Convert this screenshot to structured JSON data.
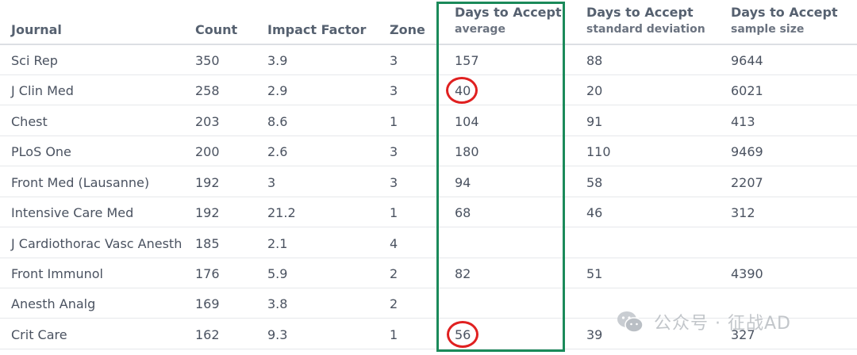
{
  "table": {
    "headers": {
      "journal": "Journal",
      "count": "Count",
      "impact_factor": "Impact Factor",
      "zone": "Zone",
      "avg": {
        "title": "Days to Accept",
        "sub": "average"
      },
      "sd": {
        "title": "Days to Accept",
        "sub": "standard deviation"
      },
      "n": {
        "title": "Days to Accept",
        "sub": "sample size"
      }
    },
    "rows": [
      {
        "journal": "Sci Rep",
        "count": "350",
        "impact_factor": "3.9",
        "zone": "3",
        "avg": "157",
        "sd": "88",
        "n": "9644"
      },
      {
        "journal": "J Clin Med",
        "count": "258",
        "impact_factor": "2.9",
        "zone": "3",
        "avg": "40",
        "sd": "20",
        "n": "6021"
      },
      {
        "journal": "Chest",
        "count": "203",
        "impact_factor": "8.6",
        "zone": "1",
        "avg": "104",
        "sd": "91",
        "n": "413"
      },
      {
        "journal": "PLoS One",
        "count": "200",
        "impact_factor": "2.6",
        "zone": "3",
        "avg": "180",
        "sd": "110",
        "n": "9469"
      },
      {
        "journal": "Front Med (Lausanne)",
        "count": "192",
        "impact_factor": "3",
        "zone": "3",
        "avg": "94",
        "sd": "58",
        "n": "2207"
      },
      {
        "journal": "Intensive Care Med",
        "count": "192",
        "impact_factor": "21.2",
        "zone": "1",
        "avg": "68",
        "sd": "46",
        "n": "312"
      },
      {
        "journal": "J Cardiothorac Vasc Anesth",
        "count": "185",
        "impact_factor": "2.1",
        "zone": "4",
        "avg": "",
        "sd": "",
        "n": ""
      },
      {
        "journal": "Front Immunol",
        "count": "176",
        "impact_factor": "5.9",
        "zone": "2",
        "avg": "82",
        "sd": "51",
        "n": "4390"
      },
      {
        "journal": "Anesth Analg",
        "count": "169",
        "impact_factor": "3.8",
        "zone": "2",
        "avg": "",
        "sd": "",
        "n": ""
      },
      {
        "journal": "Crit Care",
        "count": "162",
        "impact_factor": "9.3",
        "zone": "1",
        "avg": "56",
        "sd": "39",
        "n": "327"
      }
    ]
  },
  "annotations": {
    "box_color": "#1b8a5a",
    "circle_color": "#e02020"
  },
  "watermark": {
    "text": "公众号 · 征战AD",
    "icon": "wechat-icon"
  }
}
